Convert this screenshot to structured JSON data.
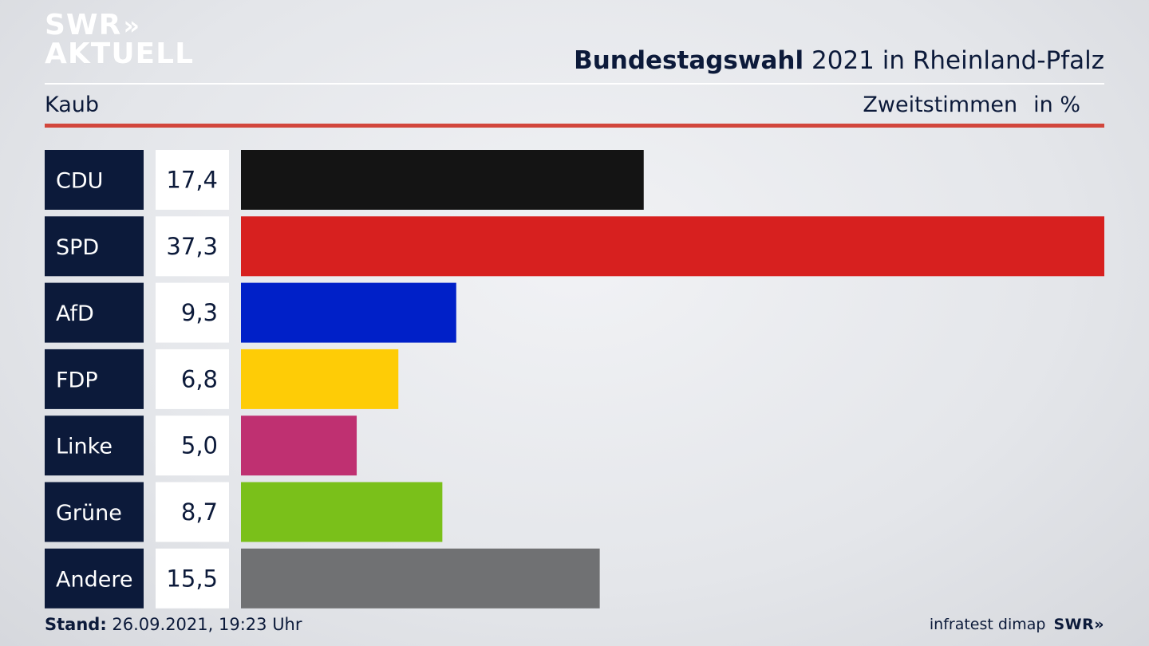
{
  "logo": {
    "line1": "SWR",
    "line2": "AKTUELL",
    "chevrons": "»"
  },
  "header": {
    "title_bold": "Bundestagswahl",
    "title_rest": "2021 in Rheinland-Pfalz",
    "location": "Kaub",
    "metric": "Zweitstimmen",
    "unit": "in %"
  },
  "chart_data": {
    "type": "bar",
    "orientation": "horizontal",
    "categories": [
      "CDU",
      "SPD",
      "AfD",
      "FDP",
      "Linke",
      "Grüne",
      "Andere"
    ],
    "values": [
      17.4,
      37.3,
      9.3,
      6.8,
      5.0,
      8.7,
      15.5
    ],
    "value_labels": [
      "17,4",
      "37,3",
      "9,3",
      "6,8",
      "5,0",
      "8,7",
      "15,5"
    ],
    "colors": [
      "#141414",
      "#d7201f",
      "#0020c8",
      "#fecc06",
      "#bf3071",
      "#7ac01a",
      "#707173"
    ],
    "label_box_color": "#0c1a3a",
    "value_box_color": "#ffffff",
    "xlim": [
      0,
      37.3
    ],
    "grid": false,
    "legend": "none"
  },
  "footer": {
    "stand_label": "Stand:",
    "stand_value": "26.09.2021, 19:23 Uhr",
    "source": "infratest dimap",
    "brand": "SWR"
  }
}
